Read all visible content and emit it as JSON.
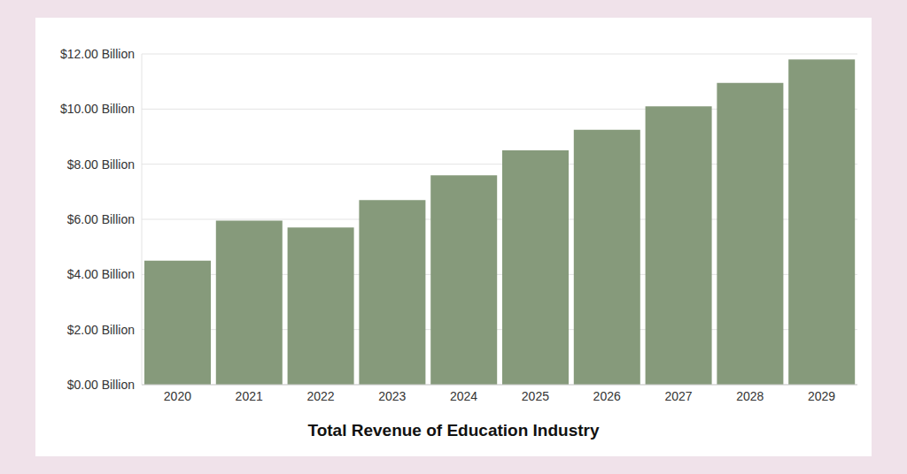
{
  "chart_data": {
    "type": "bar",
    "title": "Total Revenue of Education Industry",
    "categories": [
      "2020",
      "2021",
      "2022",
      "2023",
      "2024",
      "2025",
      "2026",
      "2027",
      "2028",
      "2029"
    ],
    "values": [
      4.5,
      5.95,
      5.7,
      6.7,
      7.6,
      8.5,
      9.25,
      10.1,
      10.95,
      11.8
    ],
    "color": "#869a7b",
    "ylim": [
      0,
      12
    ],
    "yticks": [
      {
        "value": 0,
        "label": "$0.00 Billion"
      },
      {
        "value": 2,
        "label": "$2.00 Billion"
      },
      {
        "value": 4,
        "label": "$4.00 Billion"
      },
      {
        "value": 6,
        "label": "$6.00 Billion"
      },
      {
        "value": 8,
        "label": "$8.00 Billion"
      },
      {
        "value": 10,
        "label": "$10.00 Billion"
      },
      {
        "value": 12,
        "label": "$12.00 Billion"
      }
    ],
    "grid": true
  }
}
